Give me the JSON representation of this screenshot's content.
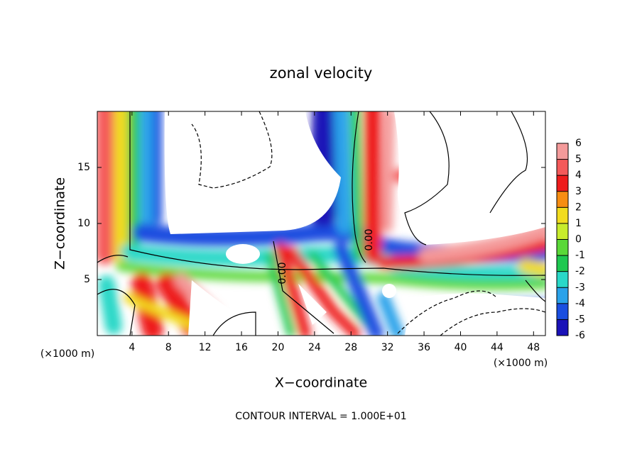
{
  "chart_data": {
    "type": "contour",
    "title": "zonal velocity",
    "xlabel": "X−coordinate",
    "ylabel": "Z−coordinate",
    "x_unit_left": "(×1000 m)",
    "x_unit_right": "(×1000 m)",
    "footer": "CONTOUR INTERVAL = 1.000E+01",
    "contour_labels": [
      "0.00",
      "0.00"
    ],
    "xlim": [
      0.2,
      49.3
    ],
    "xticks": [
      4,
      8,
      12,
      16,
      20,
      24,
      28,
      32,
      36,
      40,
      44,
      48
    ],
    "ylim": [
      0,
      20
    ],
    "yticks": [
      5,
      10,
      15
    ],
    "colorbar": {
      "lim": [
        -6,
        6
      ],
      "ticks": [
        6,
        5,
        4,
        3,
        2,
        1,
        0,
        -1,
        -2,
        -3,
        -4,
        -5,
        -6
      ],
      "colors": [
        "#f49a9a",
        "#f45a5a",
        "#ee1c1c",
        "#f78d12",
        "#f2dc1e",
        "#c8ec2c",
        "#5ad838",
        "#1ec850",
        "#29d8c8",
        "#2aa2ea",
        "#1a4ee0",
        "#1a12b8"
      ]
    }
  }
}
